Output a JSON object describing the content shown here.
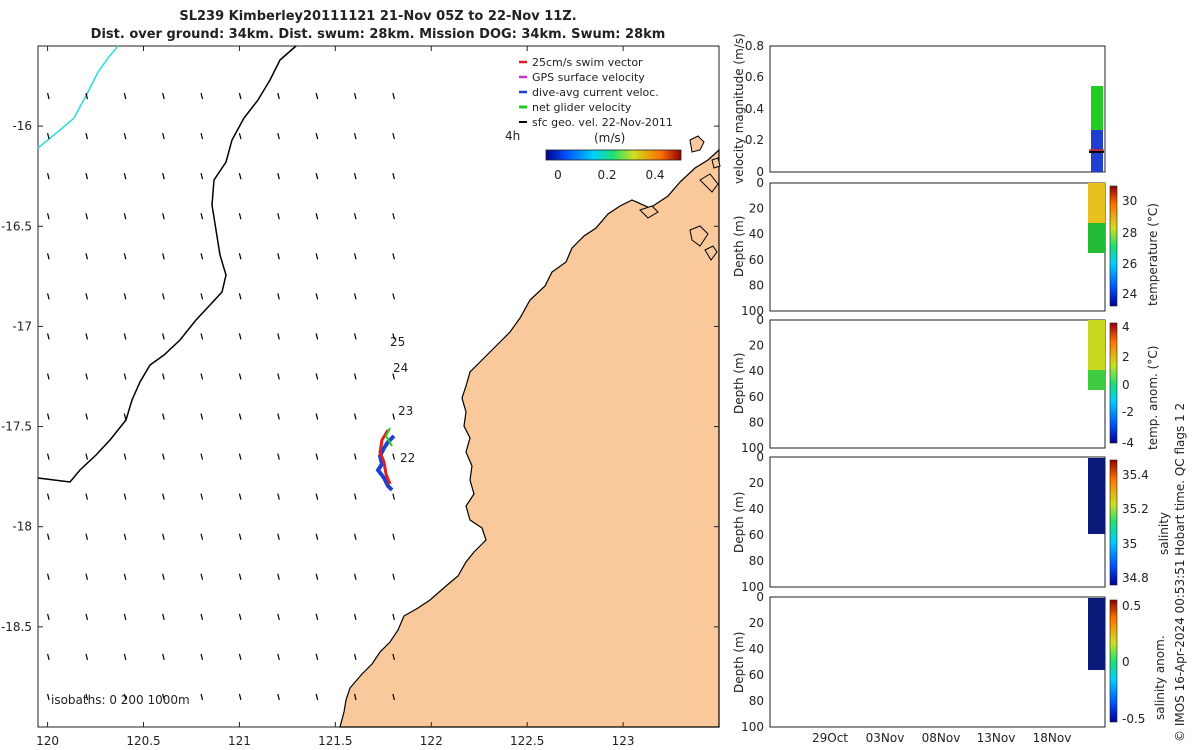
{
  "title": {
    "line1": "SL239 Kimberley20111121 21-Nov 05Z to 22-Nov 11Z.",
    "line2": "Dist. over ground: 34km. Dist. swum: 28km. Mission DOG: 34km. Swum: 28km"
  },
  "map": {
    "lon_ticks": [
      "120",
      "120.5",
      "121",
      "121.5",
      "122",
      "122.5",
      "123"
    ],
    "lat_ticks": [
      "-16",
      "-16.5",
      "-17",
      "-17.5",
      "-18",
      "-18.5"
    ],
    "xlim": [
      119.95,
      123.5
    ],
    "ylim": [
      -19.0,
      -15.6
    ],
    "legend": [
      {
        "label": "25cm/s swim vector",
        "color": "#e02020"
      },
      {
        "label": "GPS surface velocity",
        "color": "#cc33cc"
      },
      {
        "label": "dive-avg current veloc.",
        "color": "#1f3fd0"
      },
      {
        "label": "net glider velocity",
        "color": "#22cc22"
      },
      {
        "label": "sfc geo. vel. 22-Nov-2011",
        "color": "#000000"
      }
    ],
    "time_label": "4h",
    "colorbar": {
      "title": "(m/s)",
      "ticks": [
        "0",
        "0.2",
        "0.4"
      ]
    },
    "isobaths_label": "isobaths: 0   200  1000m",
    "day_labels": [
      {
        "label": "25",
        "lon": 121.78,
        "lat": -17.07
      },
      {
        "label": "24",
        "lon": 121.8,
        "lat": -17.2
      },
      {
        "label": "23",
        "lon": 121.82,
        "lat": -17.41
      },
      {
        "label": "22",
        "lon": 121.84,
        "lat": -17.65
      }
    ],
    "colors": {
      "land": "#f9c89b",
      "isobath_200": "#000000",
      "isobath_1000": "#33dddd"
    }
  },
  "panels": [
    {
      "ylabel": "velocity magnitude (m/s)",
      "yticks": [
        "0",
        "0.2",
        "0.4",
        "0.6",
        "0.8"
      ]
    },
    {
      "ylabel": "Depth (m)",
      "yticks": [
        "0",
        "20",
        "40",
        "60",
        "80",
        "100"
      ],
      "cb_label": "temperature (°C)",
      "cb_ticks": [
        "24",
        "26",
        "28",
        "30"
      ]
    },
    {
      "ylabel": "Depth (m)",
      "yticks": [
        "0",
        "20",
        "40",
        "60",
        "80",
        "100"
      ],
      "cb_label": "temp. anom. (°C)",
      "cb_ticks": [
        "-4",
        "-2",
        "0",
        "2",
        "4"
      ]
    },
    {
      "ylabel": "Depth (m)",
      "yticks": [
        "0",
        "20",
        "40",
        "60",
        "80",
        "100"
      ],
      "cb_label": "salinity",
      "cb_ticks": [
        "34.8",
        "35",
        "35.2",
        "35.4"
      ]
    },
    {
      "ylabel": "Depth (m)",
      "yticks": [
        "0",
        "20",
        "40",
        "60",
        "80",
        "100"
      ],
      "cb_label": "salinity anom.",
      "cb_ticks": [
        "-0.5",
        "0",
        "0.5"
      ]
    }
  ],
  "time_ticks": [
    "29Oct",
    "03Nov",
    "08Nov",
    "13Nov",
    "18Nov"
  ],
  "side_note": "© IMOS 16-Apr-2024 00:53:51 Hobart time. QC flags 1  2",
  "chart_data": {
    "type": "map+timeseries",
    "glider_track": {
      "lon": [
        121.78,
        121.76,
        121.74,
        121.75,
        121.73,
        121.76,
        121.77,
        121.78
      ],
      "lat": [
        -17.48,
        -17.53,
        -17.58,
        -17.63,
        -17.68,
        -17.72,
        -17.76,
        -17.8
      ]
    },
    "temperature_range_C": [
      23,
      31
    ],
    "surface_temperature_C": 29.5,
    "profile_max_depth_m": 55,
    "salinity_range": [
      34.75,
      35.5
    ],
    "velocity_magnitude_max_mps": 0.55
  }
}
